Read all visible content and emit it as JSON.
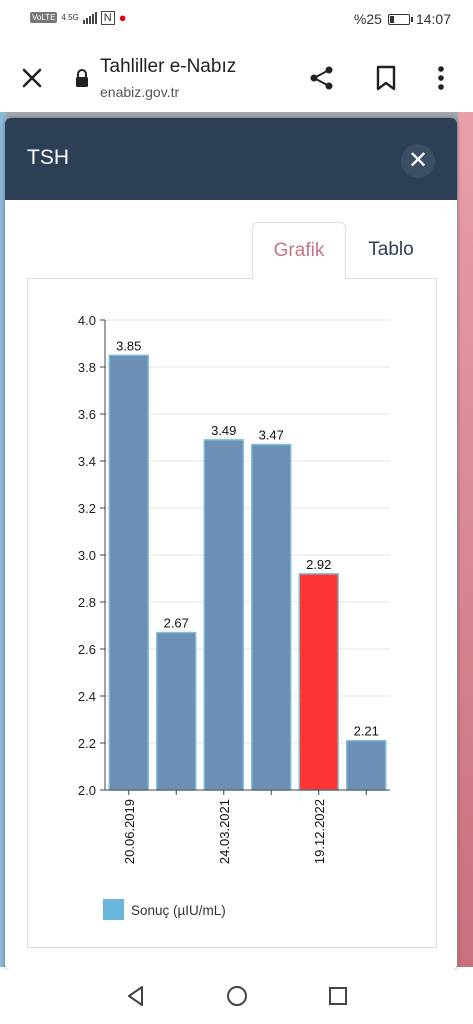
{
  "status_bar": {
    "network": "VoLTE",
    "network_type": "4.5G",
    "battery": "%25",
    "battery_level": 0.25,
    "time": "14:07"
  },
  "toolbar": {
    "title": "Tahliller e-Nabız",
    "url": "enabiz.gov.tr",
    "icons": [
      "close-icon",
      "lock-icon",
      "share-icon",
      "bookmark-icon",
      "more-vertical-icon"
    ]
  },
  "modal": {
    "title": "TSH",
    "close_label": "✕",
    "tabs": [
      {
        "label": "Grafik",
        "active": true
      },
      {
        "label": "Tablo",
        "active": false
      }
    ]
  },
  "chart_data": {
    "type": "bar",
    "categories": [
      "20.06.2019",
      "",
      "24.03.2021",
      "",
      "19.12.2022",
      ""
    ],
    "series": [
      {
        "name": "Sonuç (µIU/mL)",
        "values": [
          3.85,
          2.67,
          3.49,
          3.47,
          2.92,
          2.21
        ]
      }
    ],
    "ylim": [
      2.0,
      4.0
    ],
    "yticks": [
      "2.0",
      "2.2",
      "2.4",
      "2.6",
      "2.8",
      "3.0",
      "3.2",
      "3.4",
      "3.6",
      "3.8",
      "4.0"
    ],
    "grid": true,
    "legend_position": "bottom-left",
    "colors": {
      "bar": "#6d8eb5",
      "bar_border": "#7fc1d8",
      "highlight": "#ff3535",
      "legend_swatch": "#6ab7dc"
    },
    "highlight_index": 4
  },
  "nav_bar": {
    "icons": [
      "back-triangle-icon",
      "home-circle-icon",
      "recents-square-icon"
    ]
  }
}
